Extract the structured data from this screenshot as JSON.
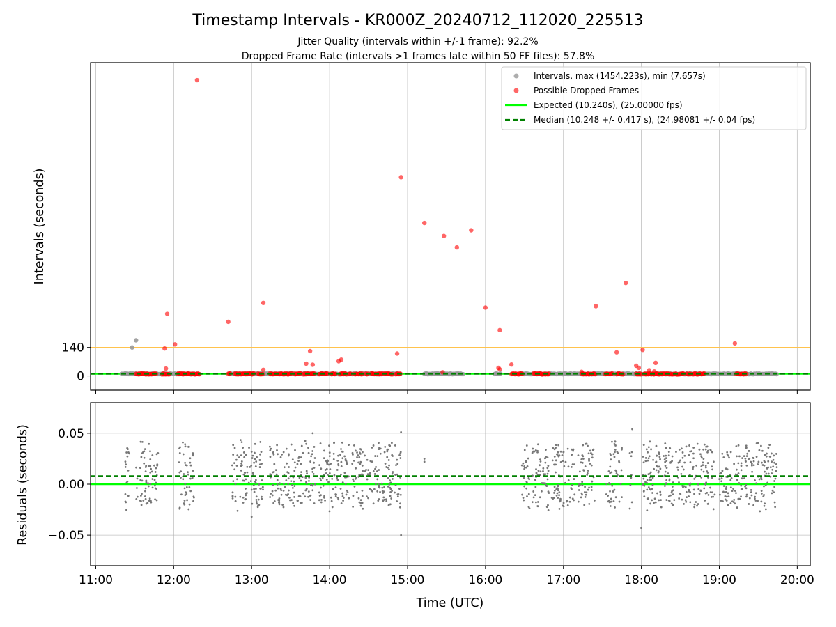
{
  "chart_data": {
    "type": "scatter",
    "title": "Timestamp Intervals - KR000Z_20240712_112020_225513",
    "subtitle_lines": [
      "Jitter Quality (intervals within +/-1 frame): 92.2%",
      "Dropped Frame Rate (intervals >1 frames late within 50 FF files): 57.8%"
    ],
    "xlabel": "Time (UTC)",
    "x_ticks": [
      "11:00",
      "12:00",
      "13:00",
      "14:00",
      "15:00",
      "16:00",
      "17:00",
      "18:00",
      "19:00",
      "20:00"
    ],
    "xlim": [
      "10:56",
      "20:10"
    ],
    "grid": "vertical on top panel, both axes on bottom panel",
    "top_panel": {
      "ylabel": "Intervals (seconds)",
      "y_ticks": [
        0,
        140
      ],
      "ylim": [
        -70,
        1540
      ],
      "threshold_line": {
        "value": 140,
        "color": "#ffc34d"
      },
      "expected_line": {
        "label": "Expected (10.240s), (25.00000 fps)",
        "value": 10.24,
        "color": "#00ff00"
      },
      "median_line": {
        "label": "Median (10.248 +/- 0.417 s), (24.98081 +/- 0.04 fps)",
        "value": 10.248,
        "color": "#008000"
      },
      "legend_position": "top-right",
      "series": [
        {
          "name": "Intervals, max (1454.223s), min (7.657s)",
          "color": "#999999",
          "observing_segments": [
            [
              "11:20",
              "12:20"
            ],
            [
              "12:43",
              "14:55"
            ],
            [
              "15:13",
              "15:43"
            ],
            [
              "16:07",
              "16:12"
            ],
            [
              "16:27",
              "19:45"
            ]
          ],
          "points": [
            {
              "x": "11:28",
              "y": 140
            },
            {
              "x": "11:31",
              "y": 175
            }
          ]
        },
        {
          "name": "Possible Dropped Frames",
          "color": "#ff0000",
          "points": [
            {
              "x": "12:18",
              "y": 1454.2
            },
            {
              "x": "14:55",
              "y": 977
            },
            {
              "x": "15:13",
              "y": 752
            },
            {
              "x": "15:28",
              "y": 688
            },
            {
              "x": "15:38",
              "y": 632
            },
            {
              "x": "15:49",
              "y": 716
            },
            {
              "x": "17:48",
              "y": 457
            },
            {
              "x": "13:09",
              "y": 359
            },
            {
              "x": "17:25",
              "y": 343
            },
            {
              "x": "16:00",
              "y": 336
            },
            {
              "x": "12:42",
              "y": 266
            },
            {
              "x": "11:55",
              "y": 305
            },
            {
              "x": "16:11",
              "y": 225
            },
            {
              "x": "18:01",
              "y": 128
            },
            {
              "x": "11:53",
              "y": 135
            },
            {
              "x": "12:01",
              "y": 155
            },
            {
              "x": "13:45",
              "y": 122
            },
            {
              "x": "14:52",
              "y": 110
            },
            {
              "x": "17:41",
              "y": 116
            },
            {
              "x": "19:12",
              "y": 160
            },
            {
              "x": "14:07",
              "y": 72
            },
            {
              "x": "14:09",
              "y": 80
            },
            {
              "x": "13:42",
              "y": 60
            },
            {
              "x": "13:47",
              "y": 55
            },
            {
              "x": "16:20",
              "y": 56
            },
            {
              "x": "18:11",
              "y": 64
            },
            {
              "x": "17:56",
              "y": 50
            },
            {
              "x": "17:58",
              "y": 40
            },
            {
              "x": "11:54",
              "y": 36
            },
            {
              "x": "13:09",
              "y": 30
            },
            {
              "x": "16:10",
              "y": 40
            },
            {
              "x": "16:11",
              "y": 32
            },
            {
              "x": "17:14",
              "y": 20
            },
            {
              "x": "15:27",
              "y": 18
            },
            {
              "x": "18:10",
              "y": 22
            },
            {
              "x": "18:06",
              "y": 28
            }
          ],
          "baseline_clusters": [
            [
              "11:31",
              "11:47"
            ],
            [
              "11:51",
              "11:57"
            ],
            [
              "12:03",
              "12:20"
            ],
            [
              "12:42",
              "12:44"
            ],
            [
              "12:47",
              "13:02"
            ],
            [
              "13:05",
              "13:09"
            ],
            [
              "13:14",
              "13:31"
            ],
            [
              "13:33",
              "13:38"
            ],
            [
              "13:40",
              "13:49"
            ],
            [
              "13:52",
              "13:59"
            ],
            [
              "14:01",
              "14:05"
            ],
            [
              "14:08",
              "14:13"
            ],
            [
              "14:15",
              "14:17"
            ],
            [
              "14:19",
              "14:26"
            ],
            [
              "14:28",
              "14:30"
            ],
            [
              "14:32",
              "14:41"
            ],
            [
              "14:42",
              "14:49"
            ],
            [
              "14:51",
              "14:55"
            ],
            [
              "16:20",
              "16:29"
            ],
            [
              "16:37",
              "16:49"
            ],
            [
              "17:14",
              "17:25"
            ],
            [
              "17:32",
              "17:38"
            ],
            [
              "17:41",
              "17:46"
            ],
            [
              "17:56",
              "18:00"
            ],
            [
              "18:02",
              "18:33"
            ],
            [
              "18:35",
              "18:39"
            ],
            [
              "18:40",
              "18:49"
            ],
            [
              "19:13",
              "19:21"
            ]
          ]
        }
      ]
    },
    "bottom_panel": {
      "ylabel": "Residuals (seconds)",
      "y_ticks": [
        "0.05",
        "0.00",
        "−0.05"
      ],
      "ylim": [
        -0.08,
        0.08
      ],
      "expected_line": 0.0,
      "median_line": 0.008,
      "point_color": "#777777",
      "clusters": [
        [
          "11:22",
          "11:26"
        ],
        [
          "11:31",
          "11:48"
        ],
        [
          "12:04",
          "12:16"
        ],
        [
          "12:45",
          "13:09"
        ],
        [
          "13:14",
          "13:34"
        ],
        [
          "13:35",
          "13:49"
        ],
        [
          "13:52",
          "14:07"
        ],
        [
          "14:08",
          "14:26"
        ],
        [
          "14:27",
          "14:49"
        ],
        [
          "14:50",
          "14:55"
        ],
        [
          "16:28",
          "16:49"
        ],
        [
          "16:51",
          "17:09"
        ],
        [
          "17:11",
          "17:24"
        ],
        [
          "17:33",
          "17:45"
        ],
        [
          "17:51",
          "17:53"
        ],
        [
          "18:01",
          "18:35"
        ],
        [
          "18:36",
          "18:57"
        ],
        [
          "19:00",
          "19:18"
        ],
        [
          "19:19",
          "19:45"
        ]
      ],
      "isolated_points": [
        {
          "x": "15:13",
          "y": 0.022
        },
        {
          "x": "15:13",
          "y": 0.025
        },
        {
          "x": "14:55",
          "y": -0.05
        },
        {
          "x": "14:55",
          "y": 0.051
        },
        {
          "x": "17:53",
          "y": 0.054
        },
        {
          "x": "18:00",
          "y": -0.043
        },
        {
          "x": "13:47",
          "y": 0.05
        },
        {
          "x": "13:00",
          "y": -0.032
        }
      ]
    }
  }
}
